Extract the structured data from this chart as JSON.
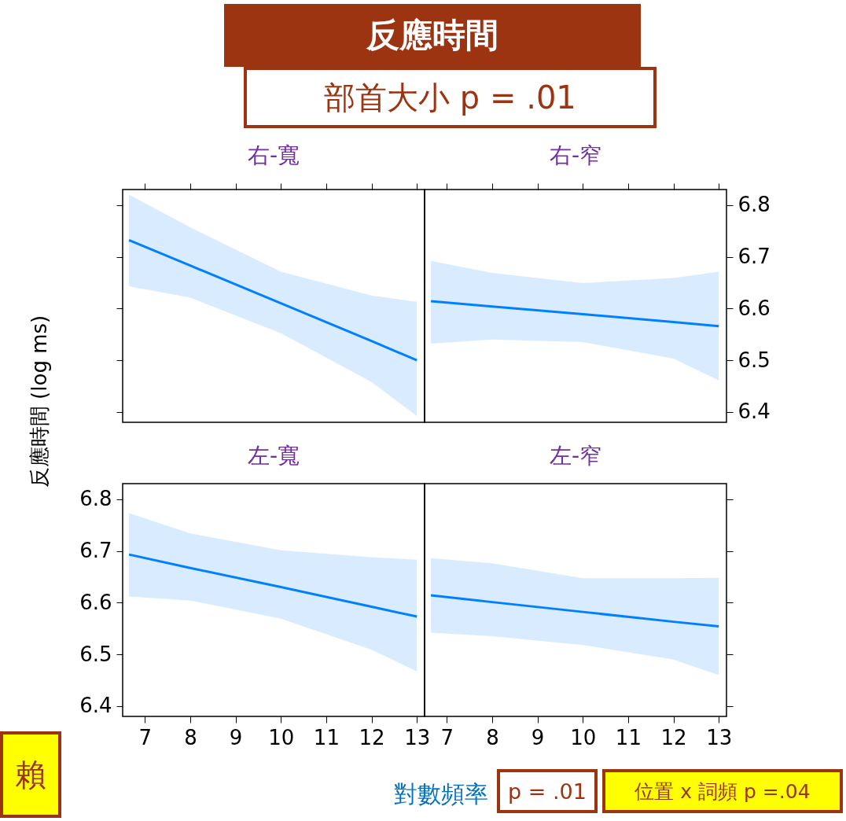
{
  "chart_data": [
    {
      "type": "line",
      "title": "右-寬",
      "ylabel": "反應時間 (log ms)",
      "annotations": [
        "反應時間",
        "部首大小 p = .01"
      ],
      "xlim": [
        6.51,
        13.17
      ],
      "xticks": [
        7,
        8,
        9,
        10,
        11,
        12,
        13
      ],
      "ylim": [
        6.38,
        6.83
      ],
      "yticks": [
        6.4,
        6.5,
        6.6,
        6.7,
        6.8
      ],
      "tick_labels": false,
      "x": [
        6.65,
        8,
        10,
        12,
        13
      ],
      "series": [
        {
          "color": "#0080ff",
          "values": [
            6.732,
            6.683,
            6.61,
            6.537,
            6.5
          ],
          "lower": [
            6.643,
            6.621,
            6.552,
            6.458,
            6.392
          ],
          "upper": [
            6.82,
            6.757,
            6.671,
            6.625,
            6.613
          ]
        }
      ]
    },
    {
      "type": "line",
      "title": "右-窄",
      "xlim": [
        6.51,
        13.17
      ],
      "xticks": [
        7,
        8,
        9,
        10,
        11,
        12,
        13
      ],
      "ylim": [
        6.38,
        6.83
      ],
      "yticks": [
        6.4,
        6.5,
        6.6,
        6.7,
        6.8
      ],
      "tick_labels": "y",
      "x": [
        6.65,
        8,
        10,
        12,
        13
      ],
      "series": [
        {
          "color": "#0080ff",
          "values": [
            6.614,
            6.604,
            6.589,
            6.574,
            6.566
          ],
          "lower": [
            6.532,
            6.54,
            6.535,
            6.503,
            6.461
          ],
          "upper": [
            6.692,
            6.669,
            6.649,
            6.659,
            6.671
          ]
        }
      ]
    },
    {
      "type": "line",
      "title": "左-寬",
      "xlabel": "對數頻率",
      "annotations": [
        "p = .01",
        "賴"
      ],
      "xlim": [
        6.51,
        13.17
      ],
      "xticks": [
        7,
        8,
        9,
        10,
        11,
        12,
        13
      ],
      "ylim": [
        6.38,
        6.83
      ],
      "yticks": [
        6.4,
        6.5,
        6.6,
        6.7,
        6.8
      ],
      "x": [
        6.65,
        8,
        10,
        12,
        13
      ],
      "series": [
        {
          "color": "#0080ff",
          "values": [
            6.693,
            6.667,
            6.63,
            6.592,
            6.573
          ],
          "lower": [
            6.612,
            6.604,
            6.569,
            6.509,
            6.467
          ],
          "upper": [
            6.773,
            6.734,
            6.701,
            6.688,
            6.683
          ]
        }
      ]
    },
    {
      "type": "line",
      "title": "左-窄",
      "annotations": [
        "位置 x 詞頻 p =.04"
      ],
      "xlim": [
        6.51,
        13.17
      ],
      "xticks": [
        7,
        8,
        9,
        10,
        11,
        12,
        13
      ],
      "ylim": [
        6.38,
        6.83
      ],
      "yticks": [
        6.4,
        6.5,
        6.6,
        6.7,
        6.8
      ],
      "tick_labels": "x",
      "x": [
        6.65,
        8,
        10,
        12,
        13
      ],
      "series": [
        {
          "color": "#0080ff",
          "values": [
            6.614,
            6.601,
            6.582,
            6.563,
            6.554
          ],
          "lower": [
            6.542,
            6.535,
            6.518,
            6.49,
            6.46
          ],
          "upper": [
            6.686,
            6.676,
            6.647,
            6.647,
            6.648
          ]
        }
      ]
    }
  ]
}
